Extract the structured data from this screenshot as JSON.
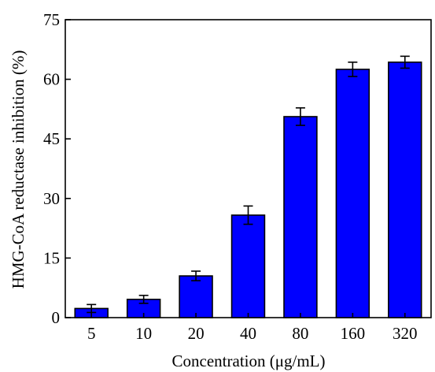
{
  "chart_data": {
    "type": "bar",
    "title": "",
    "xlabel": "Concentration (μg/mL)",
    "ylabel": "HMG-CoA reductase inhibition (%)",
    "categories": [
      "5",
      "10",
      "20",
      "40",
      "80",
      "160",
      "320"
    ],
    "values": [
      2.3,
      4.6,
      10.5,
      25.8,
      50.6,
      62.5,
      64.3
    ],
    "errors": [
      1.0,
      1.0,
      1.2,
      2.3,
      2.2,
      1.8,
      1.5
    ],
    "ylim": [
      0,
      75
    ],
    "yticks": [
      "0",
      "15",
      "30",
      "45",
      "60",
      "75"
    ],
    "grid": false,
    "legend": "none",
    "colors": {
      "bar": "#0000ff",
      "edge": "#000000"
    }
  }
}
